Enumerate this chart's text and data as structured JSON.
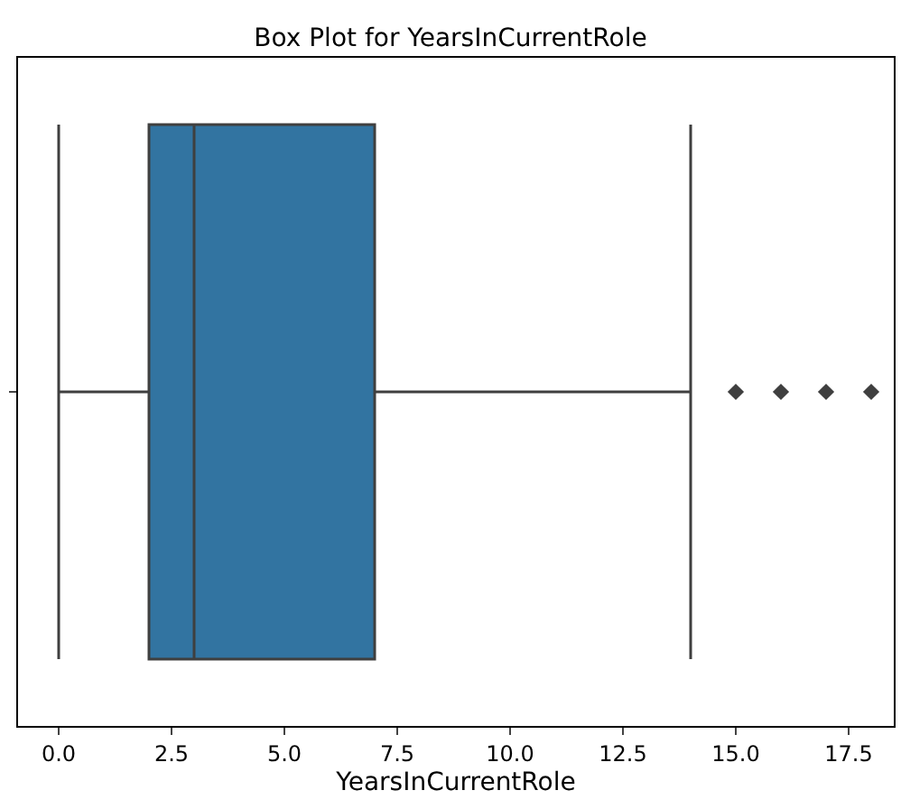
{
  "chart_data": {
    "type": "box",
    "title": "Box Plot for YearsInCurrentRole",
    "xlabel": "YearsInCurrentRole",
    "orientation": "horizontal",
    "categories": [
      null
    ],
    "series": [
      {
        "color": "#3274a1",
        "boxes": [
          {
            "low": 0,
            "q1": 2,
            "median": 3,
            "q3": 7,
            "high": 14,
            "outliers": [
              15,
              16,
              17,
              18
            ]
          }
        ]
      }
    ],
    "xlim": [
      -0.9,
      18.5
    ],
    "xticks": [
      {
        "value": 0,
        "label": "0.0"
      },
      {
        "value": 2.5,
        "label": "2.5"
      },
      {
        "value": 5,
        "label": "5.0"
      },
      {
        "value": 7.5,
        "label": "7.5"
      },
      {
        "value": 10,
        "label": "10.0"
      },
      {
        "value": 12.5,
        "label": "12.5"
      },
      {
        "value": 15,
        "label": "15.0"
      },
      {
        "value": 17.5,
        "label": "17.5"
      }
    ],
    "tick_labels": "x",
    "marker": "diamond"
  }
}
